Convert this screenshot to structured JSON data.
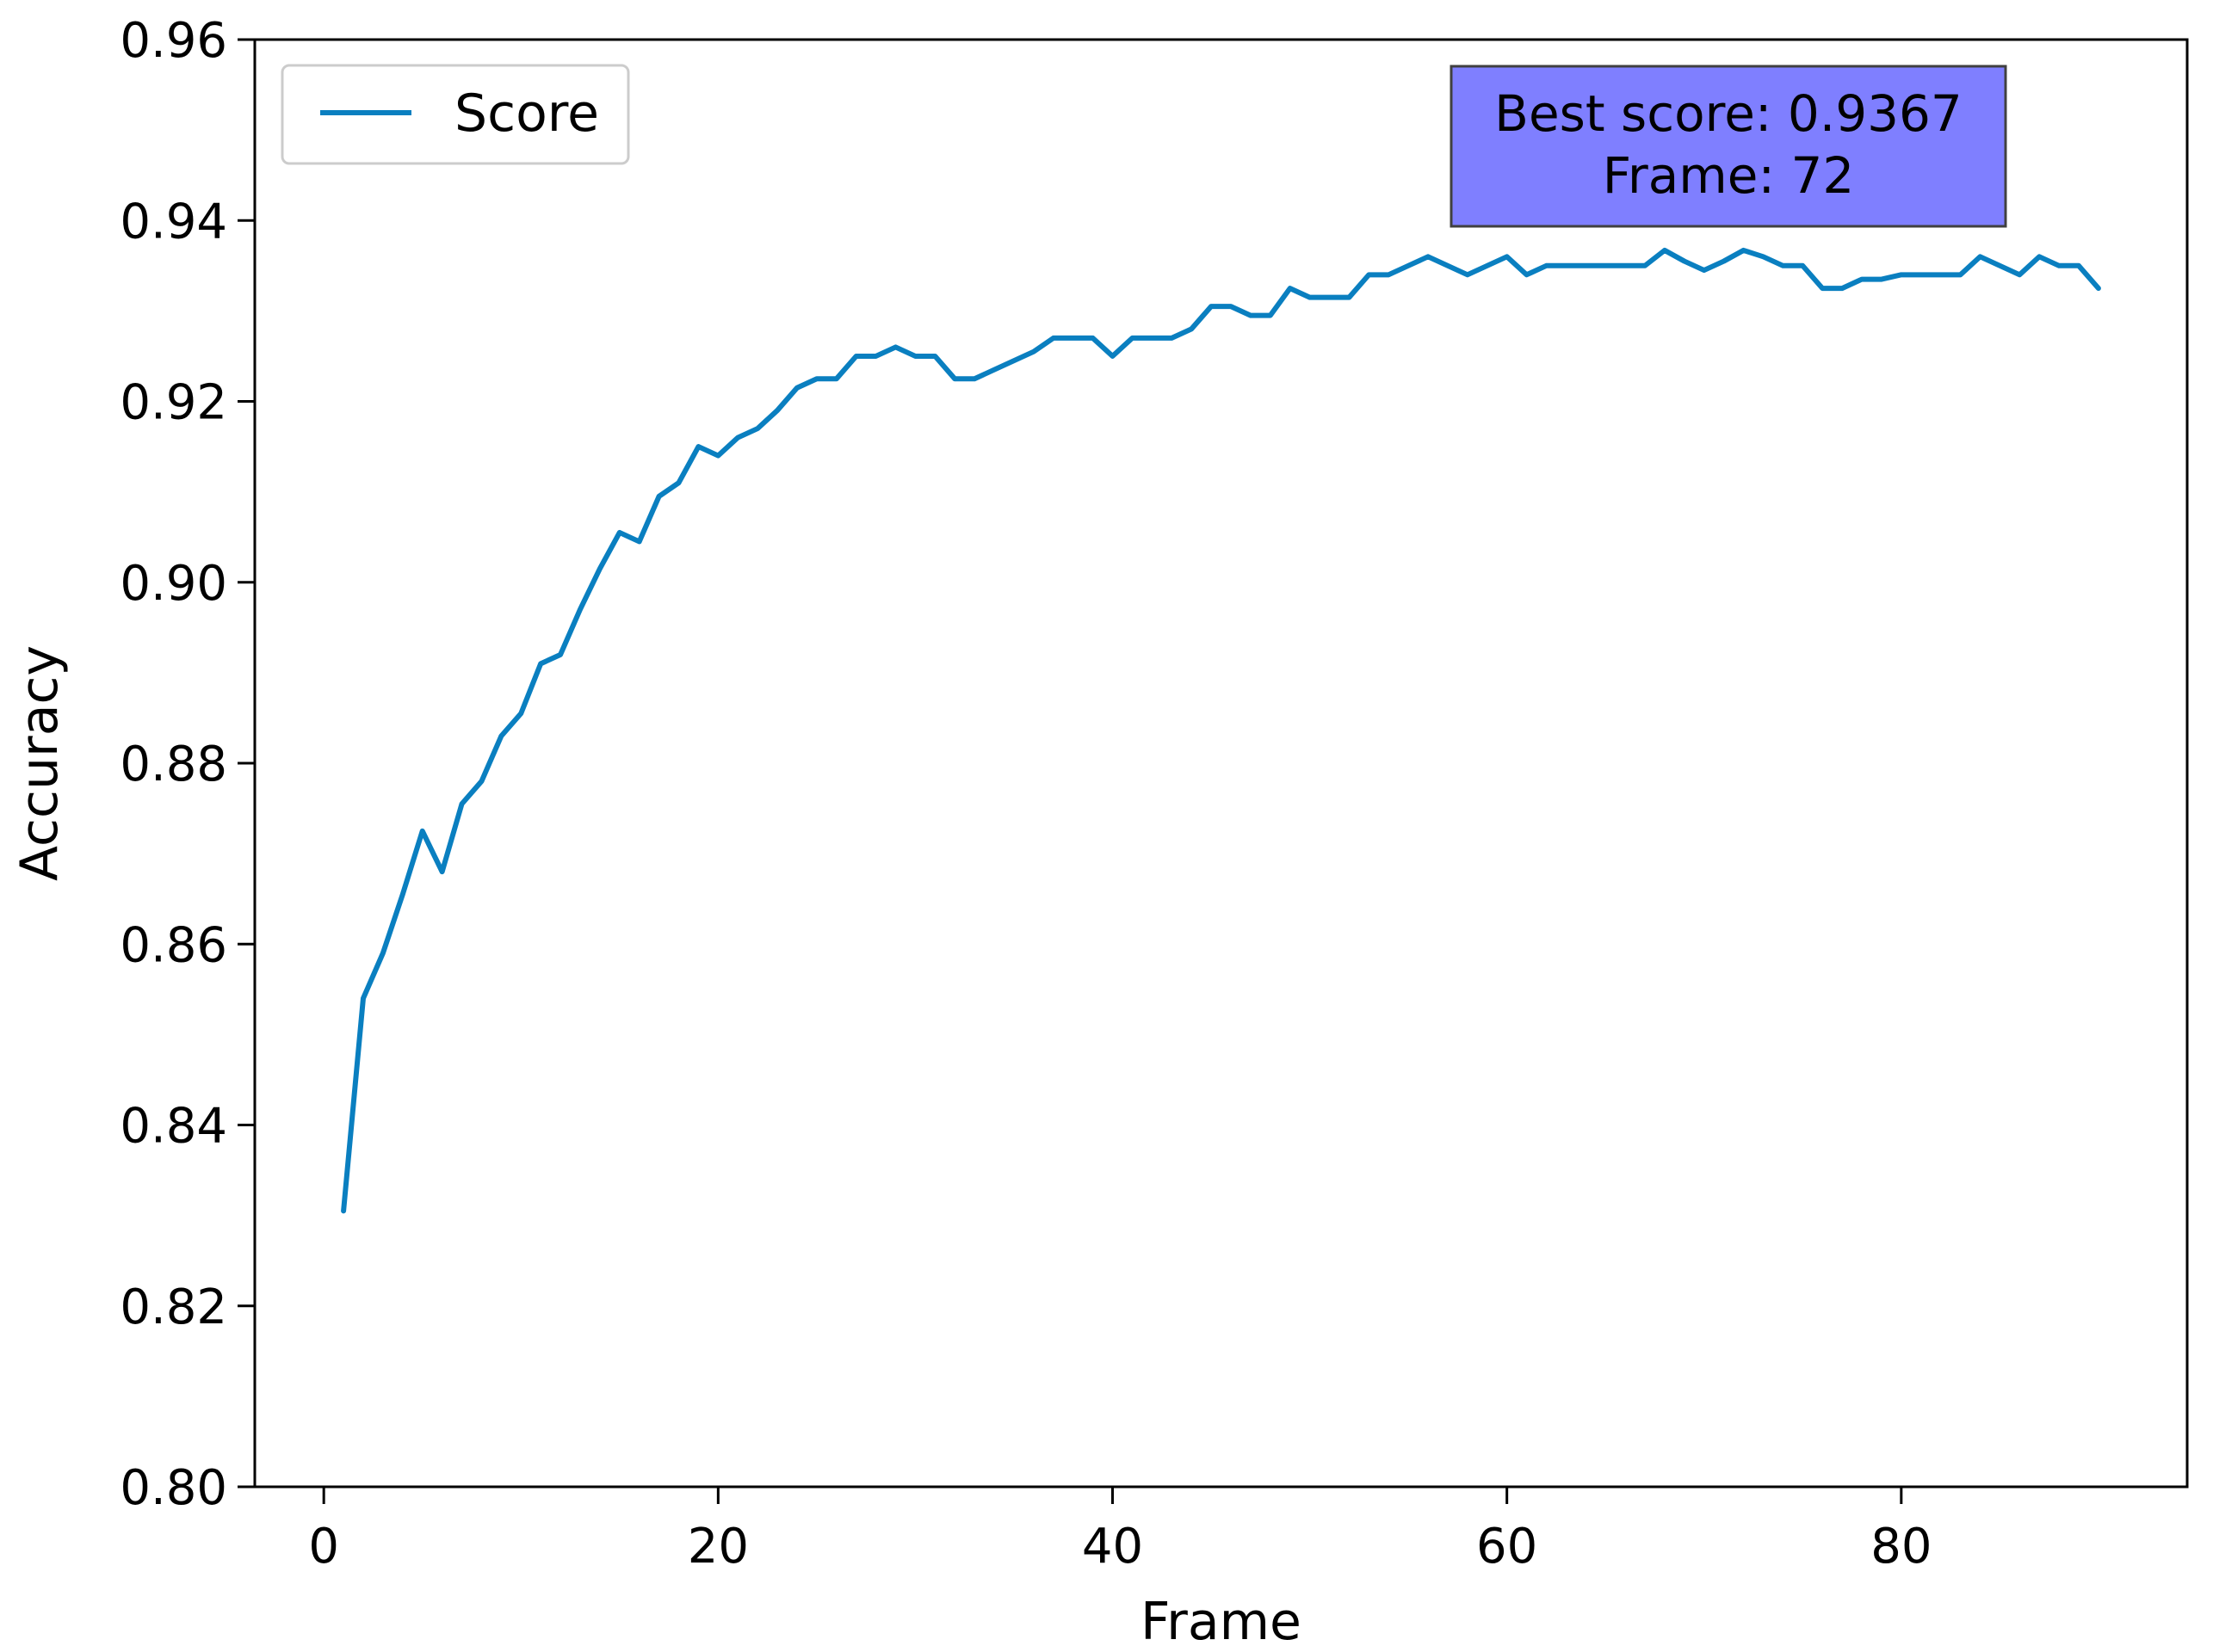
{
  "chart_data": {
    "type": "line",
    "title": "",
    "xlabel": "Frame",
    "ylabel": "Accuracy",
    "xlim": [
      -3.5,
      94.5
    ],
    "ylim": [
      0.8,
      0.96
    ],
    "xticks": [
      0,
      20,
      40,
      60,
      80
    ],
    "xtick_labels": [
      "0",
      "20",
      "40",
      "60",
      "80"
    ],
    "yticks": [
      0.8,
      0.82,
      0.84,
      0.86,
      0.88,
      0.9,
      0.92,
      0.94,
      0.96
    ],
    "ytick_labels": [
      "0.80",
      "0.82",
      "0.84",
      "0.86",
      "0.88",
      "0.90",
      "0.92",
      "0.94",
      "0.96"
    ],
    "grid": false,
    "legend_position": "top-left",
    "series": [
      {
        "name": "Score",
        "color": "#0a7fc0",
        "x": [
          1,
          2,
          3,
          4,
          5,
          6,
          7,
          8,
          9,
          10,
          11,
          12,
          13,
          14,
          15,
          16,
          17,
          18,
          19,
          20,
          21,
          22,
          23,
          24,
          25,
          26,
          27,
          28,
          29,
          30,
          31,
          32,
          33,
          34,
          35,
          36,
          37,
          38,
          39,
          40,
          41,
          42,
          43,
          44,
          45,
          46,
          47,
          48,
          49,
          50,
          51,
          52,
          53,
          54,
          55,
          56,
          57,
          58,
          59,
          60,
          61,
          62,
          63,
          64,
          65,
          66,
          67,
          68,
          69,
          70,
          71,
          72,
          73,
          74,
          75,
          76,
          77,
          78,
          79,
          80,
          81,
          82,
          83,
          84,
          85,
          86,
          87,
          88,
          89,
          90
        ],
        "y": [
          0.8305,
          0.854,
          0.859,
          0.8655,
          0.8725,
          0.868,
          0.8755,
          0.878,
          0.883,
          0.8855,
          0.891,
          0.892,
          0.897,
          0.9015,
          0.9055,
          0.9045,
          0.9095,
          0.911,
          0.915,
          0.914,
          0.916,
          0.917,
          0.919,
          0.9215,
          0.9225,
          0.9225,
          0.925,
          0.925,
          0.926,
          0.925,
          0.925,
          0.9225,
          0.9225,
          0.9235,
          0.9245,
          0.9255,
          0.927,
          0.927,
          0.927,
          0.925,
          0.927,
          0.927,
          0.927,
          0.928,
          0.9305,
          0.9305,
          0.9295,
          0.9295,
          0.9325,
          0.9315,
          0.9315,
          0.9315,
          0.934,
          0.934,
          0.935,
          0.936,
          0.935,
          0.934,
          0.935,
          0.936,
          0.934,
          0.935,
          0.935,
          0.935,
          0.935,
          0.935,
          0.935,
          0.9367,
          0.9355,
          0.9345,
          0.9355,
          0.9367,
          0.936,
          0.935,
          0.935,
          0.9325,
          0.9325,
          0.9335,
          0.9335,
          0.934,
          0.934,
          0.934,
          0.934,
          0.936,
          0.935,
          0.934,
          0.936,
          0.935,
          0.935,
          0.9325
        ]
      }
    ],
    "annotation": {
      "lines": [
        "Best score: 0.9367",
        "Frame: 72"
      ],
      "background_color": "#7f7fff",
      "position": "top-right"
    }
  }
}
